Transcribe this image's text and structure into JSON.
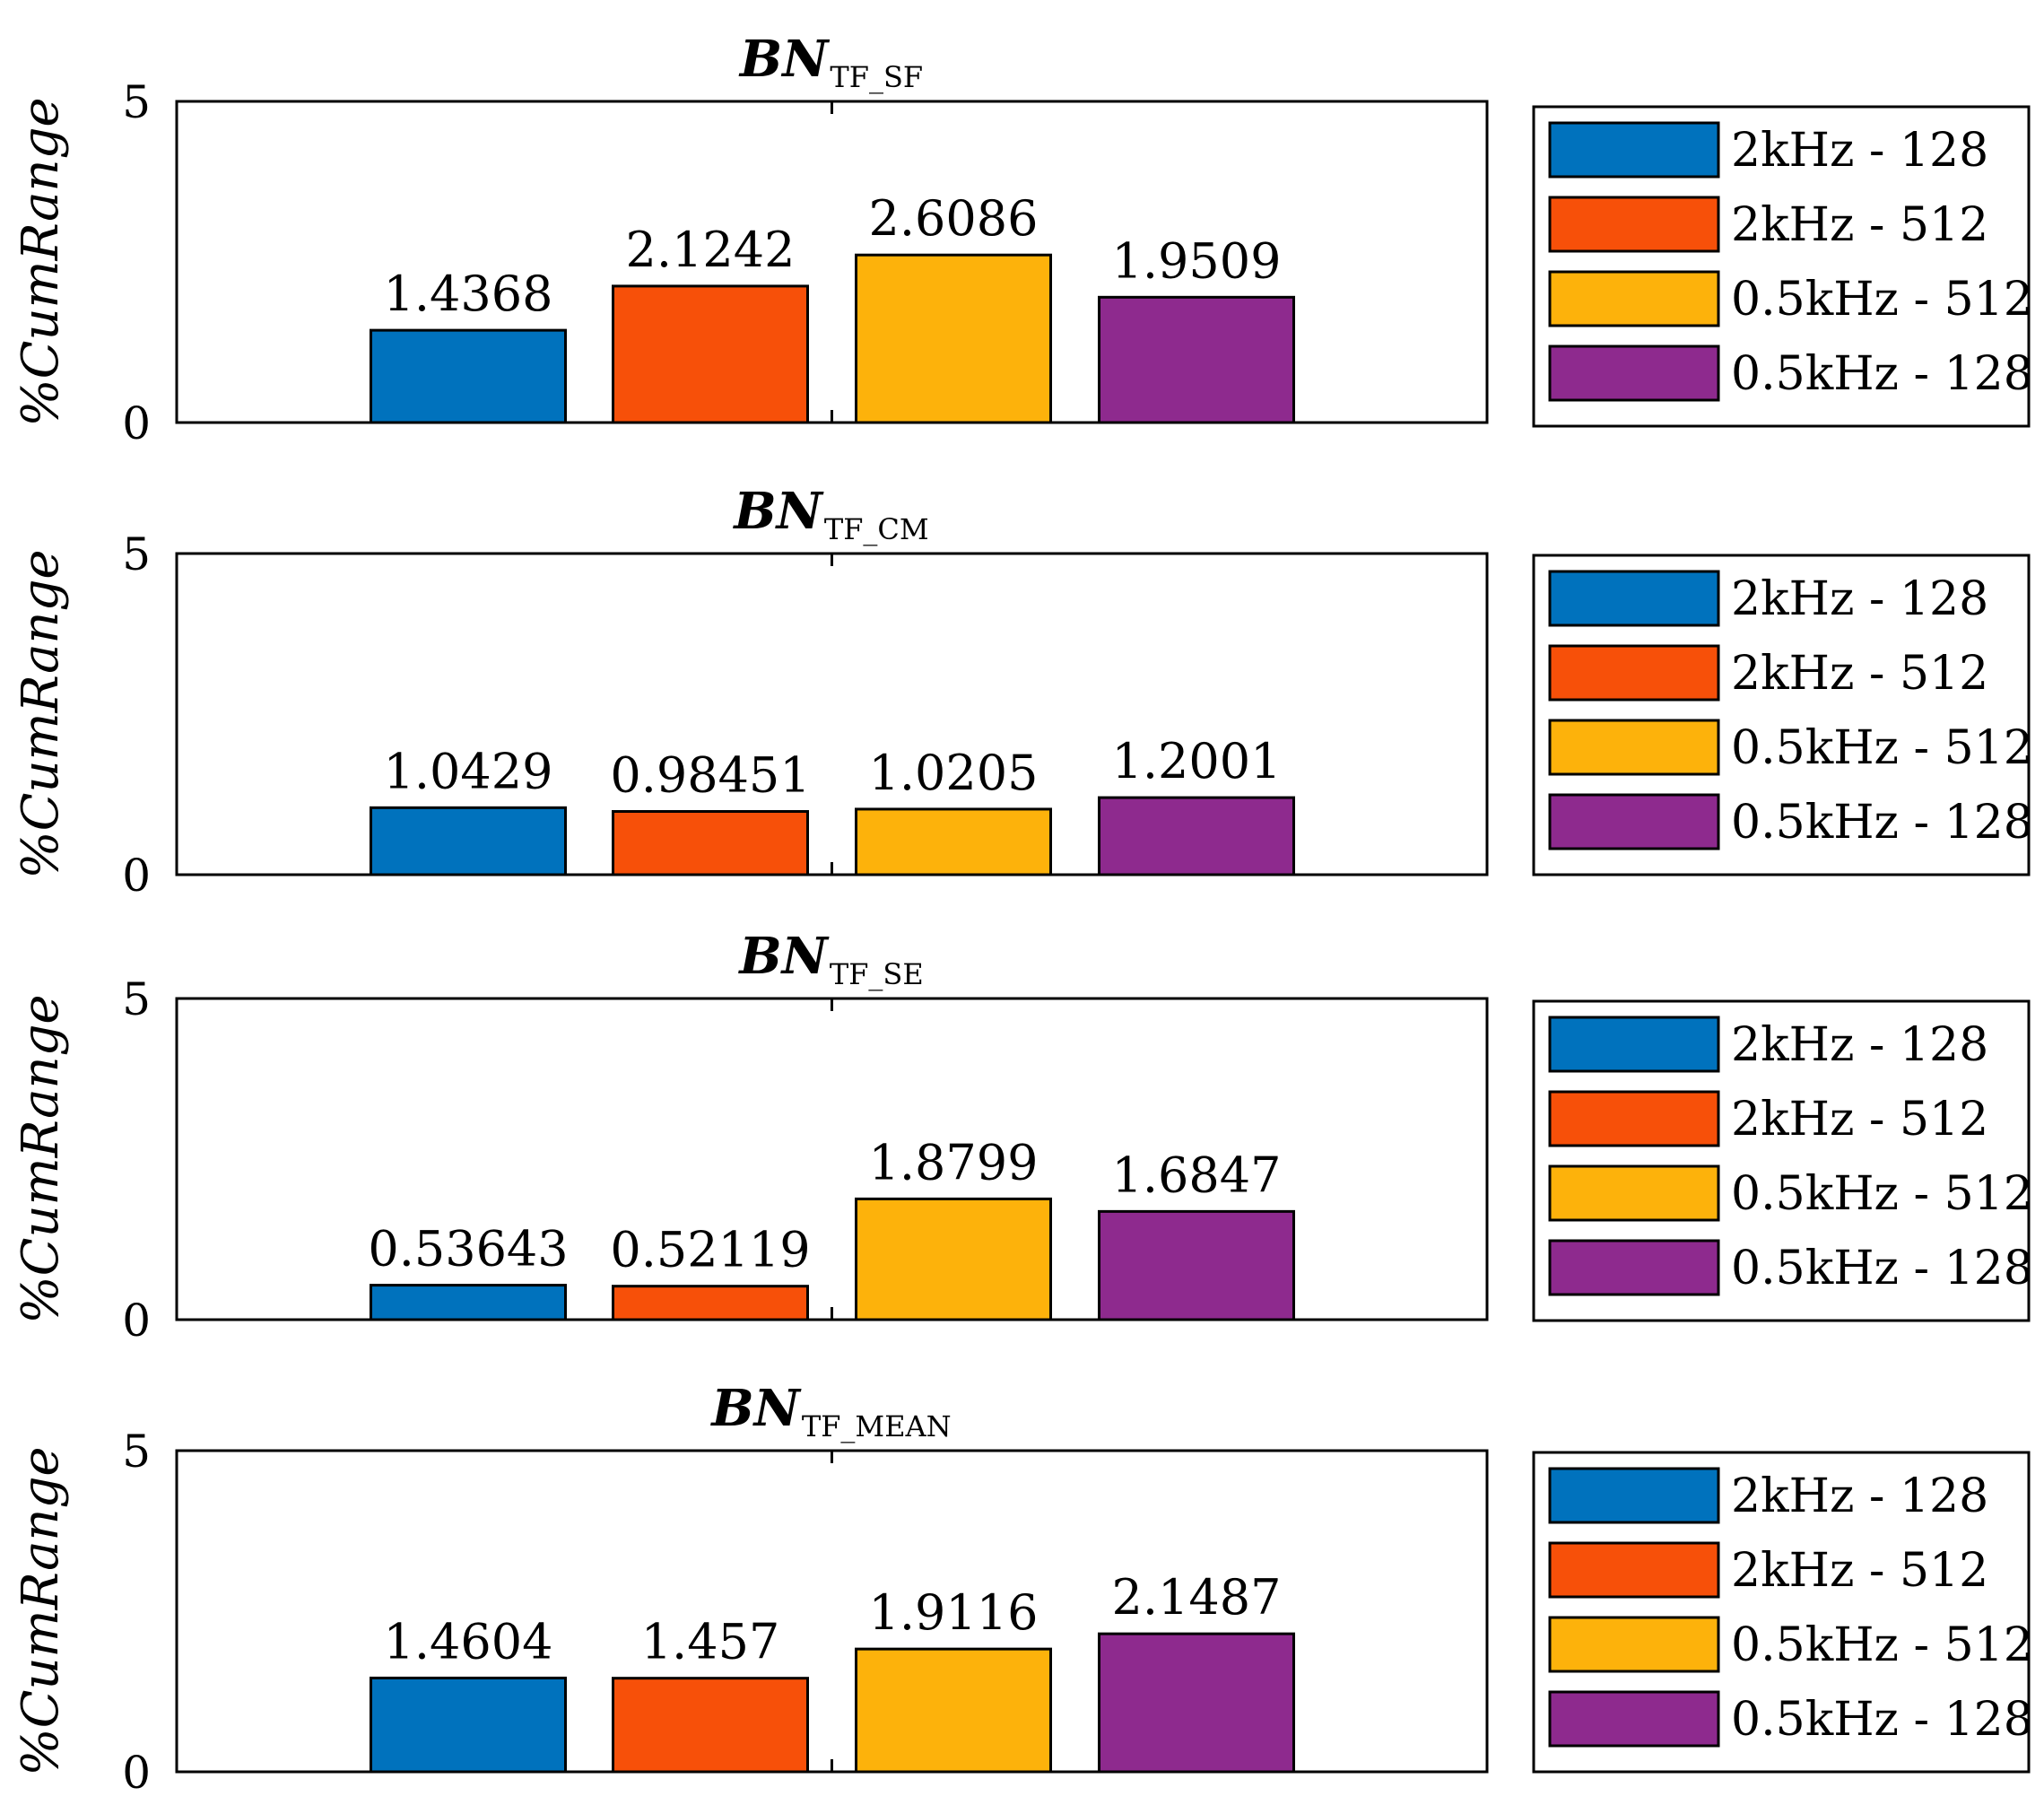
{
  "chart_data": [
    {
      "type": "bar",
      "title": "BN",
      "title_subscript": "TF_SF",
      "ylabel": "%CumRange",
      "ylim": [
        0,
        5
      ],
      "yticks": [
        "0",
        "5"
      ],
      "categories": [
        "2kHz - 128",
        "2kHz - 512",
        "0.5kHz - 512",
        "0.5kHz - 128"
      ],
      "values": [
        1.4368,
        2.1242,
        2.6086,
        1.9509
      ],
      "value_labels": [
        "1.4368",
        "2.1242",
        "2.6086",
        "1.9509"
      ],
      "legend": [
        "2kHz - 128",
        "2kHz - 512",
        "0.5kHz - 512",
        "0.5kHz - 128"
      ],
      "legend_position": "right"
    },
    {
      "type": "bar",
      "title": "BN",
      "title_subscript": "TF_CM",
      "ylabel": "%CumRange",
      "ylim": [
        0,
        5
      ],
      "yticks": [
        "0",
        "5"
      ],
      "categories": [
        "2kHz - 128",
        "2kHz - 512",
        "0.5kHz - 512",
        "0.5kHz - 128"
      ],
      "values": [
        1.0429,
        0.98451,
        1.0205,
        1.2001
      ],
      "value_labels": [
        "1.0429",
        "0.98451",
        "1.0205",
        "1.2001"
      ],
      "legend": [
        "2kHz - 128",
        "2kHz - 512",
        "0.5kHz - 512",
        "0.5kHz - 128"
      ],
      "legend_position": "right"
    },
    {
      "type": "bar",
      "title": "BN",
      "title_subscript": "TF_SE",
      "ylabel": "%CumRange",
      "ylim": [
        0,
        5
      ],
      "yticks": [
        "0",
        "5"
      ],
      "categories": [
        "2kHz - 128",
        "2kHz - 512",
        "0.5kHz - 512",
        "0.5kHz - 128"
      ],
      "values": [
        0.53643,
        0.52119,
        1.8799,
        1.6847
      ],
      "value_labels": [
        "0.53643",
        "0.52119",
        "1.8799",
        "1.6847"
      ],
      "legend": [
        "2kHz - 128",
        "2kHz - 512",
        "0.5kHz - 512",
        "0.5kHz - 128"
      ],
      "legend_position": "right"
    },
    {
      "type": "bar",
      "title": "BN",
      "title_subscript": "TF_MEAN",
      "ylabel": "%CumRange",
      "ylim": [
        0,
        5
      ],
      "yticks": [
        "0",
        "5"
      ],
      "categories": [
        "2kHz - 128",
        "2kHz - 512",
        "0.5kHz - 512",
        "0.5kHz - 128"
      ],
      "values": [
        1.4604,
        1.457,
        1.9116,
        2.1487
      ],
      "value_labels": [
        "1.4604",
        "1.457",
        "1.9116",
        "2.1487"
      ],
      "legend": [
        "2kHz - 128",
        "2kHz - 512",
        "0.5kHz - 512",
        "0.5kHz - 128"
      ],
      "legend_position": "right"
    }
  ],
  "colors": {
    "series": [
      "#0072BD",
      "#F75009",
      "#FDB20B",
      "#8E2A8E"
    ],
    "axis": "#000000",
    "background": "#ffffff"
  }
}
